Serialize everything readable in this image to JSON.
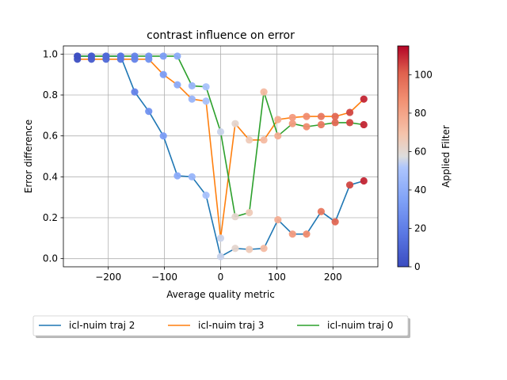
{
  "chart_data": {
    "type": "line",
    "title": "contrast influence on error",
    "xlabel": "Average quality metric",
    "ylabel": "Error difference",
    "xlim": [
      -280,
      280
    ],
    "ylim": [
      -0.04,
      1.04
    ],
    "xticks": [
      -200,
      -100,
      0,
      100,
      200
    ],
    "xtick_labels": [
      "−200",
      "−100",
      "0",
      "100",
      "200"
    ],
    "yticks": [
      0.0,
      0.2,
      0.4,
      0.6,
      0.8,
      1.0
    ],
    "ytick_labels": [
      "0.0",
      "0.2",
      "0.4",
      "0.6",
      "0.8",
      "1.0"
    ],
    "grid": true,
    "legend_position": "below plot",
    "colorbar": {
      "label": "Applied Filter",
      "range": [
        0,
        115
      ],
      "ticks": [
        0,
        20,
        40,
        60,
        80,
        100
      ],
      "colormap": "coolwarm"
    },
    "x": [
      -255,
      -230,
      -204,
      -178,
      -153,
      -128,
      -102,
      -77,
      -51,
      -26,
      0,
      26,
      51,
      77,
      102,
      128,
      153,
      179,
      204,
      230,
      255
    ],
    "filter": [
      1,
      6,
      11,
      17,
      22,
      28,
      33,
      39,
      44,
      50,
      55,
      61,
      66,
      72,
      77,
      83,
      88,
      94,
      99,
      105,
      110
    ],
    "series": [
      {
        "name": "icl-nuim traj 2",
        "color": "#1f77b4",
        "values": [
          0.99,
          0.99,
          0.99,
          0.99,
          0.815,
          0.72,
          0.6,
          0.405,
          0.4,
          0.31,
          0.01,
          0.05,
          0.045,
          0.05,
          0.19,
          0.12,
          0.12,
          0.23,
          0.18,
          0.36,
          0.38
        ]
      },
      {
        "name": "icl-nuim traj 3",
        "color": "#ff7f0e",
        "values": [
          0.975,
          0.975,
          0.975,
          0.975,
          0.975,
          0.975,
          0.9,
          0.85,
          0.78,
          0.77,
          0.1,
          0.66,
          0.58,
          0.58,
          0.68,
          0.69,
          0.695,
          0.695,
          0.695,
          0.715,
          0.78
        ]
      },
      {
        "name": "icl-nuim traj 0",
        "color": "#2ca02c",
        "values": [
          0.99,
          0.99,
          0.99,
          0.99,
          0.99,
          0.99,
          0.99,
          0.99,
          0.845,
          0.84,
          0.62,
          0.205,
          0.225,
          0.815,
          0.6,
          0.66,
          0.645,
          0.655,
          0.665,
          0.665,
          0.655
        ]
      }
    ]
  }
}
